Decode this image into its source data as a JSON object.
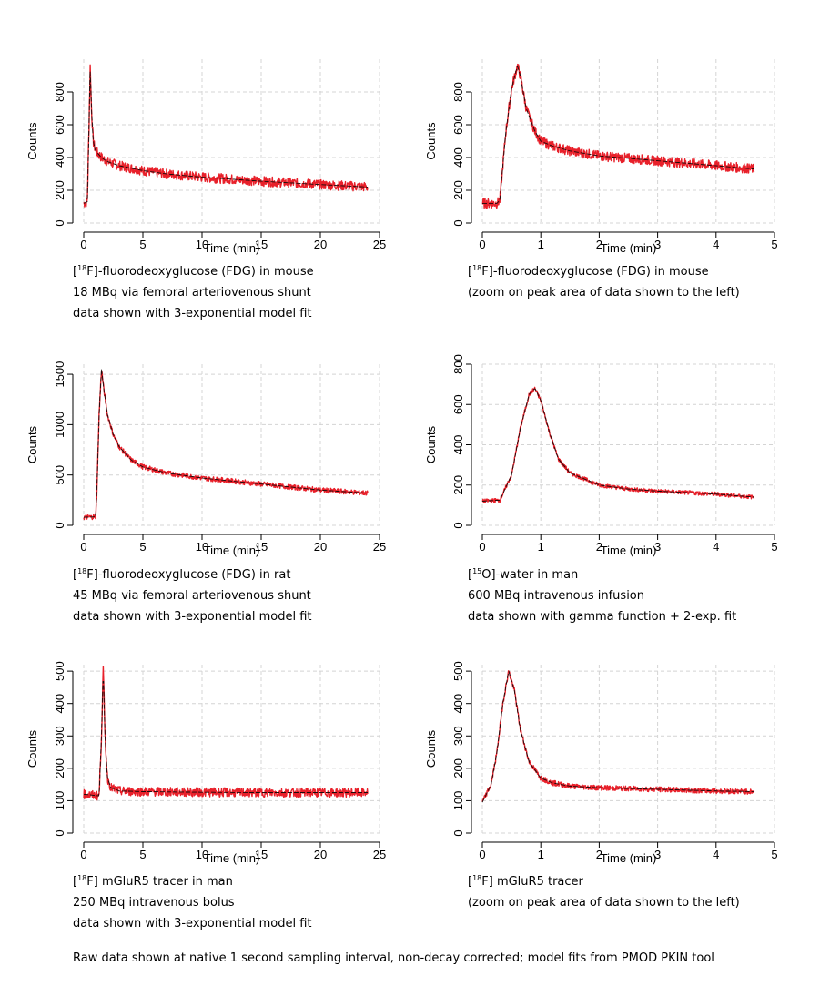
{
  "captions": [
    {
      "prefix": "[",
      "sup": "18",
      "rest": "F]-fluorodeoxyglucose (FDG) in mouse",
      "line2": "18 MBq via femoral arteriovenous shunt",
      "line3": "data shown with 3-exponential model fit"
    },
    {
      "prefix": "[",
      "sup": "18",
      "rest": "F]-fluorodeoxyglucose (FDG) in mouse",
      "line2": "(zoom on peak area of data shown to the left)",
      "line3": ""
    },
    {
      "prefix": "[",
      "sup": "18",
      "rest": "F]-fluorodeoxyglucose (FDG) in rat",
      "line2": "45 MBq via femoral arteriovenous shunt",
      "line3": "data shown with 3-exponential model fit"
    },
    {
      "prefix": "[",
      "sup": "15",
      "rest": "O]-water in man",
      "line2": "600 MBq intravenous infusion",
      "line3": "data shown with gamma function + 2-exp. fit"
    },
    {
      "prefix": "[",
      "sup": "18",
      "rest": "F] mGluR5 tracer in man",
      "line2": "250 MBq intravenous bolus",
      "line3": "data shown with 3-exponential model fit"
    },
    {
      "prefix": "[",
      "sup": "18",
      "rest": "F] mGluR5 tracer",
      "line2": "(zoom on peak area of data shown to the left)",
      "line3": ""
    }
  ],
  "footer": "Raw data shown at native 1 second sampling interval, non-decay corrected; model fits from PMOD PKIN tool",
  "colors": {
    "data": "#e8202a",
    "fit": "#1a0a0a",
    "grid": "#d4d4d4"
  },
  "chart_data": [
    {
      "type": "line",
      "xlabel": "Time (min)",
      "ylabel": "Counts",
      "xlim": [
        0,
        25
      ],
      "ylim": [
        0,
        1000
      ],
      "xticks": [
        0,
        5,
        10,
        15,
        20,
        25
      ],
      "yticks": [
        0,
        200,
        400,
        600,
        800
      ],
      "grid": true,
      "series": [
        {
          "role": "data",
          "x": [
            0,
            0.3,
            0.45,
            0.55,
            0.65,
            0.8,
            1,
            1.5,
            2,
            3,
            5,
            7,
            10,
            15,
            20,
            24
          ],
          "y": [
            120,
            130,
            600,
            960,
            700,
            500,
            440,
            400,
            375,
            350,
            320,
            300,
            280,
            255,
            235,
            220
          ],
          "noise": 30
        },
        {
          "role": "fit",
          "x": [
            0,
            0.3,
            0.45,
            0.55,
            0.65,
            0.8,
            1,
            1.5,
            2,
            3,
            5,
            7,
            10,
            15,
            20,
            24
          ],
          "y": [
            120,
            130,
            600,
            960,
            700,
            500,
            440,
            400,
            375,
            350,
            320,
            300,
            280,
            255,
            235,
            220
          ]
        }
      ]
    },
    {
      "type": "line",
      "xlabel": "Time (min)",
      "ylabel": "Counts",
      "xlim": [
        0,
        5
      ],
      "ylim": [
        0,
        1000
      ],
      "xticks": [
        0,
        1,
        2,
        3,
        4,
        5
      ],
      "yticks": [
        0,
        200,
        400,
        600,
        800
      ],
      "grid": true,
      "series": [
        {
          "role": "data",
          "x": [
            0,
            0.25,
            0.3,
            0.4,
            0.5,
            0.6,
            0.65,
            0.75,
            0.9,
            1,
            1.2,
            1.5,
            2,
            3,
            4,
            4.65
          ],
          "y": [
            120,
            120,
            140,
            550,
            820,
            960,
            900,
            700,
            560,
            500,
            470,
            440,
            410,
            380,
            350,
            330
          ],
          "noise": 30
        },
        {
          "role": "fit",
          "x": [
            0,
            0.25,
            0.3,
            0.4,
            0.5,
            0.6,
            0.65,
            0.75,
            0.9,
            1,
            1.2,
            1.5,
            2,
            3,
            4,
            4.65
          ],
          "y": [
            120,
            120,
            140,
            550,
            820,
            960,
            900,
            700,
            560,
            500,
            470,
            440,
            410,
            380,
            350,
            330
          ]
        }
      ]
    },
    {
      "type": "line",
      "xlabel": "Time (min)",
      "ylabel": "Counts",
      "xlim": [
        0,
        25
      ],
      "ylim": [
        0,
        1600
      ],
      "xticks": [
        0,
        5,
        10,
        15,
        20,
        25
      ],
      "yticks": [
        0,
        500,
        1000,
        1500
      ],
      "grid": true,
      "series": [
        {
          "role": "data",
          "x": [
            0,
            1,
            1.1,
            1.3,
            1.5,
            1.7,
            2,
            2.5,
            3,
            4,
            5,
            7,
            10,
            15,
            20,
            24
          ],
          "y": [
            80,
            85,
            300,
            1100,
            1550,
            1350,
            1100,
            900,
            780,
            650,
            580,
            520,
            470,
            410,
            350,
            320
          ],
          "noise": 25
        },
        {
          "role": "fit",
          "x": [
            0,
            1,
            1.1,
            1.3,
            1.5,
            1.7,
            2,
            2.5,
            3,
            4,
            5,
            7,
            10,
            15,
            20,
            24
          ],
          "y": [
            80,
            85,
            300,
            1100,
            1550,
            1350,
            1100,
            900,
            780,
            650,
            580,
            520,
            470,
            410,
            350,
            320
          ]
        }
      ]
    },
    {
      "type": "line",
      "xlabel": "Time (min)",
      "ylabel": "Counts",
      "xlim": [
        0,
        5
      ],
      "ylim": [
        0,
        800
      ],
      "xticks": [
        0,
        1,
        2,
        3,
        4,
        5
      ],
      "yticks": [
        0,
        200,
        400,
        600,
        800
      ],
      "grid": true,
      "series": [
        {
          "role": "data",
          "x": [
            0,
            0.3,
            0.5,
            0.65,
            0.8,
            0.9,
            1,
            1.15,
            1.3,
            1.5,
            2,
            2.5,
            3,
            4,
            4.65
          ],
          "y": [
            120,
            125,
            250,
            480,
            650,
            680,
            620,
            460,
            330,
            260,
            200,
            180,
            170,
            155,
            140
          ],
          "noise": 10
        },
        {
          "role": "fit",
          "x": [
            0,
            0.3,
            0.5,
            0.65,
            0.8,
            0.9,
            1,
            1.15,
            1.3,
            1.5,
            2,
            2.5,
            3,
            4,
            4.65
          ],
          "y": [
            120,
            125,
            250,
            480,
            650,
            680,
            620,
            460,
            330,
            260,
            200,
            180,
            170,
            155,
            140
          ]
        }
      ]
    },
    {
      "type": "line",
      "xlabel": "Time (min)",
      "ylabel": "Counts",
      "xlim": [
        0,
        25
      ],
      "ylim": [
        0,
        520
      ],
      "xticks": [
        0,
        5,
        10,
        15,
        20,
        25
      ],
      "yticks": [
        0,
        100,
        200,
        300,
        400,
        500
      ],
      "grid": true,
      "series": [
        {
          "role": "data",
          "x": [
            0,
            1.3,
            1.5,
            1.65,
            1.8,
            2,
            2.3,
            3,
            5,
            10,
            15,
            20,
            24
          ],
          "y": [
            120,
            115,
            300,
            510,
            300,
            170,
            140,
            130,
            128,
            126,
            125,
            125,
            125
          ],
          "noise": 14
        },
        {
          "role": "fit",
          "x": [
            0,
            1.3,
            1.5,
            1.65,
            1.8,
            2,
            2.3,
            3,
            5,
            10,
            15,
            20,
            24
          ],
          "y": [
            120,
            115,
            300,
            510,
            300,
            170,
            140,
            130,
            128,
            126,
            125,
            125,
            125
          ]
        }
      ]
    },
    {
      "type": "line",
      "xlabel": "Time (min)",
      "ylabel": "Counts",
      "xlim": [
        0,
        5
      ],
      "ylim": [
        0,
        520
      ],
      "xticks": [
        0,
        1,
        2,
        3,
        4,
        5
      ],
      "yticks": [
        0,
        100,
        200,
        300,
        400,
        500
      ],
      "grid": true,
      "series": [
        {
          "role": "data",
          "x": [
            0,
            0.15,
            0.25,
            0.35,
            0.45,
            0.55,
            0.65,
            0.8,
            1,
            1.2,
            1.5,
            2,
            3,
            4,
            4.65
          ],
          "y": [
            95,
            150,
            250,
            400,
            500,
            440,
            320,
            220,
            170,
            155,
            145,
            140,
            135,
            130,
            128
          ],
          "noise": 8
        },
        {
          "role": "fit",
          "x": [
            0,
            0.15,
            0.25,
            0.35,
            0.45,
            0.55,
            0.65,
            0.8,
            1,
            1.2,
            1.5,
            2,
            3,
            4,
            4.65
          ],
          "y": [
            95,
            150,
            250,
            400,
            500,
            440,
            320,
            220,
            170,
            155,
            145,
            140,
            135,
            130,
            128
          ]
        }
      ]
    }
  ]
}
